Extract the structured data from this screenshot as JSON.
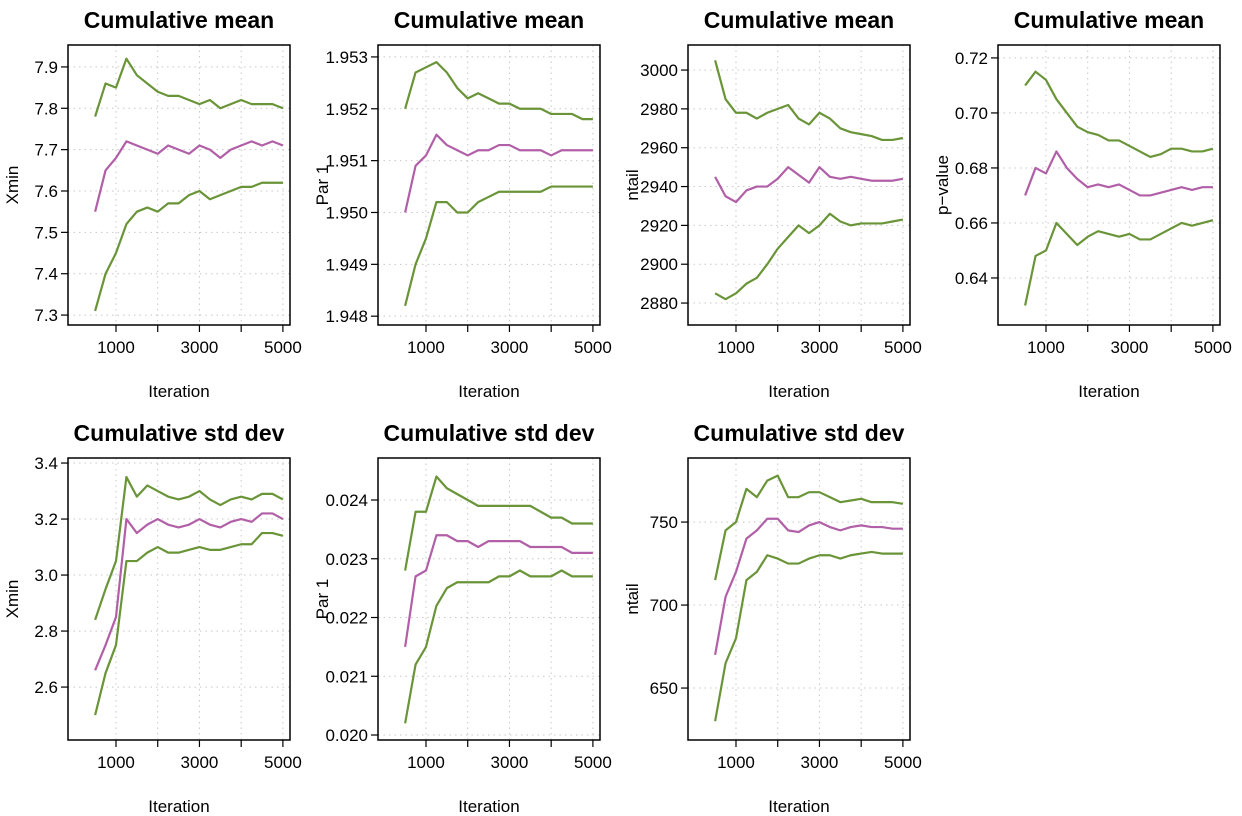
{
  "chart_data": [
    {
      "type": "line",
      "title": "Cumulative mean",
      "xlabel": "Iteration",
      "ylabel": "Xmin",
      "x": [
        500,
        750,
        1000,
        1250,
        1500,
        1750,
        2000,
        2250,
        2500,
        2750,
        3000,
        3250,
        3500,
        3750,
        4000,
        4250,
        4500,
        4750,
        5000
      ],
      "series": [
        {
          "color": "#6a9438",
          "values": [
            7.78,
            7.86,
            7.85,
            7.92,
            7.88,
            7.86,
            7.84,
            7.83,
            7.83,
            7.82,
            7.81,
            7.82,
            7.8,
            7.81,
            7.82,
            7.81,
            7.81,
            7.81,
            7.8
          ]
        },
        {
          "color": "#b15fa7",
          "values": [
            7.55,
            7.65,
            7.68,
            7.72,
            7.71,
            7.7,
            7.69,
            7.71,
            7.7,
            7.69,
            7.71,
            7.7,
            7.68,
            7.7,
            7.71,
            7.72,
            7.71,
            7.72,
            7.71
          ]
        },
        {
          "color": "#6a9438",
          "values": [
            7.31,
            7.4,
            7.45,
            7.52,
            7.55,
            7.56,
            7.55,
            7.57,
            7.57,
            7.59,
            7.6,
            7.58,
            7.59,
            7.6,
            7.61,
            7.61,
            7.62,
            7.62,
            7.62
          ]
        }
      ],
      "xlim": [
        -150,
        5170
      ],
      "xticks": [
        1000,
        3000,
        5000
      ],
      "xminor_ticks": [
        2000,
        4000
      ],
      "ylim": [
        7.276,
        7.953
      ],
      "yticks": [
        7.3,
        7.4,
        7.5,
        7.6,
        7.7,
        7.8,
        7.9
      ],
      "grid": true
    },
    {
      "type": "line",
      "title": "Cumulative mean",
      "xlabel": "Iteration",
      "ylabel": "Par 1",
      "x": [
        500,
        750,
        1000,
        1250,
        1500,
        1750,
        2000,
        2250,
        2500,
        2750,
        3000,
        3250,
        3500,
        3750,
        4000,
        4250,
        4500,
        4750,
        5000
      ],
      "series": [
        {
          "color": "#6a9438",
          "values": [
            1.952,
            1.9527,
            1.9528,
            1.9529,
            1.9527,
            1.9524,
            1.9522,
            1.9523,
            1.9522,
            1.9521,
            1.9521,
            1.952,
            1.952,
            1.952,
            1.9519,
            1.9519,
            1.9519,
            1.9518,
            1.9518
          ]
        },
        {
          "color": "#b15fa7",
          "values": [
            1.95,
            1.9509,
            1.9511,
            1.9515,
            1.9513,
            1.9512,
            1.9511,
            1.9512,
            1.9512,
            1.9513,
            1.9513,
            1.9512,
            1.9512,
            1.9512,
            1.9511,
            1.9512,
            1.9512,
            1.9512,
            1.9512
          ]
        },
        {
          "color": "#6a9438",
          "values": [
            1.9482,
            1.949,
            1.9495,
            1.9502,
            1.9502,
            1.95,
            1.95,
            1.9502,
            1.9503,
            1.9504,
            1.9504,
            1.9504,
            1.9504,
            1.9504,
            1.9505,
            1.9505,
            1.9505,
            1.9505,
            1.9505
          ]
        }
      ],
      "xlim": [
        -150,
        5170
      ],
      "xticks": [
        1000,
        3000,
        5000
      ],
      "xminor_ticks": [
        2000,
        4000
      ],
      "ylim": [
        1.94783,
        1.95323
      ],
      "yticks": [
        1.948,
        1.949,
        {
          "value": 1.95,
          "label": "1.950"
        },
        1.951,
        1.952,
        1.953
      ],
      "grid": true
    },
    {
      "type": "line",
      "title": "Cumulative mean",
      "xlabel": "Iteration",
      "ylabel": "ntail",
      "x": [
        500,
        750,
        1000,
        1250,
        1500,
        1750,
        2000,
        2250,
        2500,
        2750,
        3000,
        3250,
        3500,
        3750,
        4000,
        4250,
        4500,
        4750,
        5000
      ],
      "series": [
        {
          "color": "#6a9438",
          "values": [
            3005,
            2985,
            2978,
            2978,
            2975,
            2978,
            2980,
            2982,
            2975,
            2972,
            2978,
            2975,
            2970,
            2968,
            2967,
            2966,
            2964,
            2964,
            2965
          ]
        },
        {
          "color": "#b15fa7",
          "values": [
            2945,
            2935,
            2932,
            2938,
            2940,
            2940,
            2944,
            2950,
            2946,
            2942,
            2950,
            2945,
            2944,
            2945,
            2944,
            2943,
            2943,
            2943,
            2944
          ]
        },
        {
          "color": "#6a9438",
          "values": [
            2885,
            2882,
            2885,
            2890,
            2893,
            2900,
            2908,
            2914,
            2920,
            2916,
            2920,
            2926,
            2922,
            2920,
            2921,
            2921,
            2921,
            2922,
            2923
          ]
        }
      ],
      "xlim": [
        -150,
        5170
      ],
      "xticks": [
        1000,
        3000,
        5000
      ],
      "xminor_ticks": [
        2000,
        4000
      ],
      "ylim": [
        2868.7,
        3012.9
      ],
      "yticks": [
        2880,
        2900,
        2920,
        2940,
        2960,
        2980,
        3000
      ],
      "grid": true
    },
    {
      "type": "line",
      "title": "Cumulative mean",
      "xlabel": "Iteration",
      "ylabel": "p−value",
      "x": [
        500,
        750,
        1000,
        1250,
        1500,
        1750,
        2000,
        2250,
        2500,
        2750,
        3000,
        3250,
        3500,
        3750,
        4000,
        4250,
        4500,
        4750,
        5000
      ],
      "series": [
        {
          "color": "#6a9438",
          "values": [
            0.71,
            0.715,
            0.712,
            0.705,
            0.7,
            0.695,
            0.693,
            0.692,
            0.69,
            0.69,
            0.688,
            0.686,
            0.684,
            0.685,
            0.687,
            0.687,
            0.686,
            0.686,
            0.687
          ]
        },
        {
          "color": "#b15fa7",
          "values": [
            0.67,
            0.68,
            0.678,
            0.686,
            0.68,
            0.676,
            0.673,
            0.674,
            0.673,
            0.674,
            0.672,
            0.67,
            0.67,
            0.671,
            0.672,
            0.673,
            0.672,
            0.673,
            0.673
          ]
        },
        {
          "color": "#6a9438",
          "values": [
            0.63,
            0.648,
            0.65,
            0.66,
            0.656,
            0.652,
            0.655,
            0.657,
            0.656,
            0.655,
            0.656,
            0.654,
            0.654,
            0.656,
            0.658,
            0.66,
            0.659,
            0.66,
            0.661
          ]
        }
      ],
      "xlim": [
        -150,
        5170
      ],
      "xticks": [
        1000,
        3000,
        5000
      ],
      "xminor_ticks": [
        2000,
        4000
      ],
      "ylim": [
        0.6229,
        0.7247
      ],
      "yticks": [
        0.64,
        0.66,
        0.68,
        {
          "value": 0.7,
          "label": "0.70"
        },
        0.72
      ],
      "grid": true
    },
    {
      "type": "line",
      "title": "Cumulative std dev",
      "xlabel": "Iteration",
      "ylabel": "Xmin",
      "x": [
        500,
        750,
        1000,
        1250,
        1500,
        1750,
        2000,
        2250,
        2500,
        2750,
        3000,
        3250,
        3500,
        3750,
        4000,
        4250,
        4500,
        4750,
        5000
      ],
      "series": [
        {
          "color": "#6a9438",
          "values": [
            2.84,
            2.95,
            3.05,
            3.35,
            3.28,
            3.32,
            3.3,
            3.28,
            3.27,
            3.28,
            3.3,
            3.27,
            3.25,
            3.27,
            3.28,
            3.27,
            3.29,
            3.29,
            3.27
          ]
        },
        {
          "color": "#b15fa7",
          "values": [
            2.66,
            2.75,
            2.85,
            3.2,
            3.15,
            3.18,
            3.2,
            3.18,
            3.17,
            3.18,
            3.2,
            3.18,
            3.17,
            3.19,
            3.2,
            3.19,
            3.22,
            3.22,
            3.2
          ]
        },
        {
          "color": "#6a9438",
          "values": [
            2.5,
            2.65,
            2.75,
            3.05,
            3.05,
            3.08,
            3.1,
            3.08,
            3.08,
            3.09,
            3.1,
            3.09,
            3.09,
            3.1,
            3.11,
            3.11,
            3.15,
            3.15,
            3.14
          ]
        }
      ],
      "xlim": [
        -150,
        5170
      ],
      "xticks": [
        1000,
        3000,
        5000
      ],
      "xminor_ticks": [
        2000,
        4000
      ],
      "ylim": [
        2.411,
        3.418
      ],
      "yticks": [
        2.6,
        2.8,
        {
          "value": 3,
          "label": "3.0"
        },
        3.2,
        3.4
      ],
      "grid": true
    },
    {
      "type": "line",
      "title": "Cumulative std dev",
      "xlabel": "Iteration",
      "ylabel": "Par 1",
      "x": [
        500,
        750,
        1000,
        1250,
        1500,
        1750,
        2000,
        2250,
        2500,
        2750,
        3000,
        3250,
        3500,
        3750,
        4000,
        4250,
        4500,
        4750,
        5000
      ],
      "series": [
        {
          "color": "#6a9438",
          "values": [
            0.0228,
            0.0238,
            0.0238,
            0.0244,
            0.0242,
            0.0241,
            0.024,
            0.0239,
            0.0239,
            0.0239,
            0.0239,
            0.0239,
            0.0239,
            0.0238,
            0.0237,
            0.0237,
            0.0236,
            0.0236,
            0.0236
          ]
        },
        {
          "color": "#b15fa7",
          "values": [
            0.0215,
            0.0227,
            0.0228,
            0.0234,
            0.0234,
            0.0233,
            0.0233,
            0.0232,
            0.0233,
            0.0233,
            0.0233,
            0.0233,
            0.0232,
            0.0232,
            0.0232,
            0.0232,
            0.0231,
            0.0231,
            0.0231
          ]
        },
        {
          "color": "#6a9438",
          "values": [
            0.0202,
            0.0212,
            0.0215,
            0.0222,
            0.0225,
            0.0226,
            0.0226,
            0.0226,
            0.0226,
            0.0227,
            0.0227,
            0.0228,
            0.0227,
            0.0227,
            0.0227,
            0.0228,
            0.0227,
            0.0227,
            0.0227
          ]
        }
      ],
      "xlim": [
        -150,
        5170
      ],
      "xticks": [
        1000,
        3000,
        5000
      ],
      "xminor_ticks": [
        2000,
        4000
      ],
      "ylim": [
        0.019915,
        0.024715
      ],
      "yticks": [
        {
          "value": 0.02,
          "label": "0.020"
        },
        0.021,
        0.022,
        0.023,
        0.024
      ],
      "grid": true
    },
    {
      "type": "line",
      "title": "Cumulative std dev",
      "xlabel": "Iteration",
      "ylabel": "ntail",
      "x": [
        500,
        750,
        1000,
        1250,
        1500,
        1750,
        2000,
        2250,
        2500,
        2750,
        3000,
        3250,
        3500,
        3750,
        4000,
        4250,
        4500,
        4750,
        5000
      ],
      "series": [
        {
          "color": "#6a9438",
          "values": [
            715,
            745,
            750,
            770,
            765,
            775,
            778,
            765,
            765,
            768,
            768,
            765,
            762,
            763,
            764,
            762,
            762,
            762,
            761
          ]
        },
        {
          "color": "#b15fa7",
          "values": [
            670,
            705,
            720,
            740,
            745,
            752,
            752,
            745,
            744,
            748,
            750,
            747,
            745,
            747,
            748,
            747,
            747,
            746,
            746
          ]
        },
        {
          "color": "#6a9438",
          "values": [
            630,
            665,
            680,
            715,
            720,
            730,
            728,
            725,
            725,
            728,
            730,
            730,
            728,
            730,
            731,
            732,
            731,
            731,
            731
          ]
        }
      ],
      "xlim": [
        -150,
        5170
      ],
      "xticks": [
        1000,
        3000,
        5000
      ],
      "xminor_ticks": [
        2000,
        4000
      ],
      "ylim": [
        618.7,
        788.6
      ],
      "yticks": [
        650,
        700,
        750
      ],
      "grid": true
    }
  ]
}
